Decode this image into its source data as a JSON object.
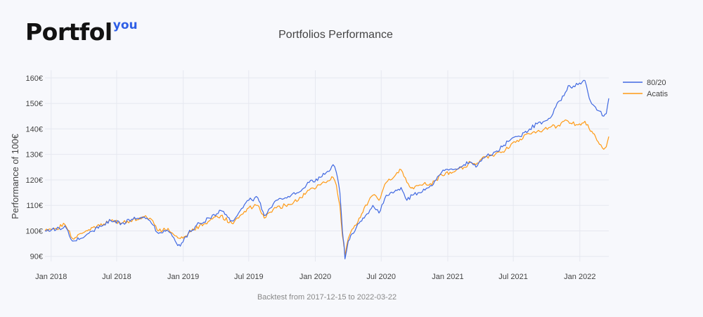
{
  "logo": {
    "main": "Portfol",
    "sup": "you"
  },
  "chart_data": {
    "type": "line",
    "title": "Portfolios Performance",
    "xlabel": "",
    "ylabel": "Performance of 100€",
    "ylim": [
      88,
      163
    ],
    "yticks": [
      90,
      100,
      110,
      120,
      130,
      140,
      150,
      160
    ],
    "ytick_labels": [
      "90€",
      "100€",
      "110€",
      "120€",
      "130€",
      "140€",
      "150€",
      "160€"
    ],
    "xlim": [
      "2017-12-15",
      "2022-03-22"
    ],
    "xticks": [
      "2018-01-01",
      "2018-07-01",
      "2019-01-01",
      "2019-07-01",
      "2020-01-01",
      "2020-07-01",
      "2021-01-01",
      "2021-07-01",
      "2022-01-01"
    ],
    "xtick_labels": [
      "Jan 2018",
      "Jul 2018",
      "Jan 2019",
      "Jul 2019",
      "Jan 2020",
      "Jul 2020",
      "Jan 2021",
      "Jul 2021",
      "Jan 2022"
    ],
    "grid": true,
    "legend_position": "top-right",
    "dates": [
      "2017-12-15",
      "2018-01-15",
      "2018-02-08",
      "2018-03-01",
      "2018-03-23",
      "2018-04-15",
      "2018-05-15",
      "2018-06-15",
      "2018-07-15",
      "2018-08-15",
      "2018-09-15",
      "2018-10-01",
      "2018-10-25",
      "2018-11-20",
      "2018-12-10",
      "2018-12-24",
      "2019-01-15",
      "2019-02-15",
      "2019-03-15",
      "2019-04-15",
      "2019-05-15",
      "2019-06-03",
      "2019-07-01",
      "2019-07-26",
      "2019-08-13",
      "2019-09-15",
      "2019-10-10",
      "2019-11-15",
      "2019-12-15",
      "2020-01-15",
      "2020-02-12",
      "2020-02-19",
      "2020-02-28",
      "2020-03-09",
      "2020-03-16",
      "2020-03-20",
      "2020-03-23",
      "2020-04-01",
      "2020-04-15",
      "2020-05-01",
      "2020-05-15",
      "2020-06-08",
      "2020-06-25",
      "2020-07-15",
      "2020-08-10",
      "2020-08-25",
      "2020-09-10",
      "2020-09-25",
      "2020-10-15",
      "2020-10-30",
      "2020-11-10",
      "2020-11-30",
      "2020-12-15",
      "2021-01-15",
      "2021-02-15",
      "2021-03-05",
      "2021-03-20",
      "2021-04-15",
      "2021-05-12",
      "2021-06-01",
      "2021-06-25",
      "2021-07-20",
      "2021-08-15",
      "2021-09-05",
      "2021-09-25",
      "2021-10-15",
      "2021-10-30",
      "2021-11-18",
      "2021-11-30",
      "2021-12-10",
      "2021-12-31",
      "2022-01-15",
      "2022-01-27",
      "2022-02-10",
      "2022-02-24",
      "2022-03-08",
      "2022-03-15",
      "2022-03-22"
    ],
    "series": [
      {
        "name": "80/20",
        "color": "#4169e1",
        "values": [
          100,
          100.5,
          102,
          96,
          97,
          99,
          102,
          104,
          103,
          104.5,
          105.5,
          104,
          99,
          100,
          96,
          94,
          99,
          103,
          105,
          108,
          104,
          107,
          112,
          113,
          106,
          112,
          113,
          115,
          119,
          121,
          124,
          126,
          123,
          115,
          100,
          95,
          89,
          96,
          99,
          103,
          105,
          110,
          107,
          114,
          116,
          117,
          112,
          114,
          115,
          116,
          117,
          120,
          123,
          124,
          126,
          127,
          125,
          129,
          131,
          133,
          136,
          137,
          140,
          142,
          143,
          145,
          150,
          153,
          157,
          156,
          158,
          159,
          152,
          149,
          147,
          145,
          146,
          152
        ]
      },
      {
        "name": "Acatis",
        "color": "#ff9a14",
        "values": [
          100,
          101,
          102.5,
          97,
          99,
          100.5,
          102,
          104,
          103,
          104.5,
          105.5,
          105,
          100,
          101,
          98,
          97,
          99,
          102,
          104,
          106,
          103,
          105,
          109,
          110,
          105,
          109,
          110,
          112,
          116,
          118,
          120,
          121,
          118,
          110,
          98,
          94,
          90,
          97,
          101,
          105,
          109,
          114,
          112,
          119,
          122,
          124,
          119,
          117,
          118,
          119,
          118,
          120,
          122,
          123,
          125,
          127,
          126,
          129,
          130,
          131,
          134,
          136,
          138,
          139,
          140,
          141,
          141,
          143,
          143,
          142,
          142,
          143,
          140,
          138,
          134,
          132,
          133,
          137
        ]
      }
    ]
  },
  "footnote": "Backtest from 2017-12-15 to 2022-03-22"
}
